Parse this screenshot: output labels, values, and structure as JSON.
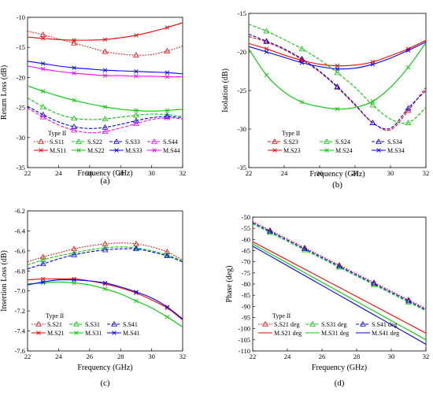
{
  "chart_data": [
    {
      "type": "line",
      "panel_label": "(a)",
      "xlabel": "Frequency (GHz)",
      "ylabel": "Return Loss (dB)",
      "xlim": [
        22,
        32
      ],
      "ylim": [
        -35,
        -10
      ],
      "xticks": [
        22,
        24,
        26,
        28,
        30,
        32
      ],
      "yticks": [
        -35,
        -30,
        -25,
        -20,
        -15,
        -10
      ],
      "grid": false,
      "legend_title": "Type II",
      "legend_placement": "bottom",
      "legend_columns": 4,
      "x": [
        22,
        23,
        24,
        25,
        26,
        27,
        28,
        29,
        30,
        31,
        32
      ],
      "series": [
        {
          "name": "S.S11",
          "color": "#ff0000",
          "dash": "dotted",
          "marker": "triangle",
          "values": [
            -12.3,
            -12.9,
            -13.6,
            -14.3,
            -15.0,
            -15.7,
            -16.1,
            -16.3,
            -16.2,
            -15.6,
            -14.8
          ]
        },
        {
          "name": "S.S22",
          "color": "#00cc00",
          "dash": "dashed",
          "marker": "triangle",
          "values": [
            -23.4,
            -24.9,
            -26.1,
            -26.8,
            -27.0,
            -26.9,
            -26.6,
            -26.3,
            -26.1,
            -26.2,
            -26.5
          ]
        },
        {
          "name": "S.S33",
          "color": "#0000ff",
          "dash": "dashed",
          "marker": "triangle",
          "values": [
            -24.8,
            -26.2,
            -27.4,
            -28.2,
            -28.5,
            -28.3,
            -27.8,
            -27.2,
            -26.7,
            -26.5,
            -26.7
          ]
        },
        {
          "name": "S.S44",
          "color": "#ff00ff",
          "dash": "dashed",
          "marker": "triangle",
          "values": [
            -25.1,
            -26.6,
            -27.9,
            -28.8,
            -29.2,
            -29.0,
            -28.4,
            -27.7,
            -27.0,
            -26.7,
            -26.9
          ]
        },
        {
          "name": "M.S11",
          "color": "#ff0000",
          "dash": "solid",
          "marker": "x",
          "values": [
            -13.3,
            -13.5,
            -13.7,
            -13.8,
            -13.8,
            -13.7,
            -13.4,
            -13.0,
            -12.4,
            -11.7,
            -10.9
          ]
        },
        {
          "name": "M.S22",
          "color": "#00cc00",
          "dash": "solid",
          "marker": "x",
          "values": [
            -21.4,
            -22.3,
            -23.1,
            -23.8,
            -24.4,
            -24.9,
            -25.3,
            -25.5,
            -25.6,
            -25.5,
            -25.3
          ]
        },
        {
          "name": "M.S33",
          "color": "#0000ff",
          "dash": "solid",
          "marker": "x",
          "values": [
            -17.3,
            -17.7,
            -18.1,
            -18.4,
            -18.6,
            -18.8,
            -18.9,
            -19.0,
            -19.1,
            -19.2,
            -19.4
          ]
        },
        {
          "name": "M.S44",
          "color": "#ff00ff",
          "dash": "solid",
          "marker": "x",
          "values": [
            -18.1,
            -18.6,
            -19.0,
            -19.3,
            -19.5,
            -19.7,
            -19.7,
            -19.8,
            -19.8,
            -19.9,
            -19.9
          ]
        }
      ]
    },
    {
      "type": "line",
      "panel_label": "(b)",
      "xlabel": "Frequency (GHz)",
      "ylabel": "Isolation (dB)",
      "xlim": [
        22,
        32
      ],
      "ylim": [
        -35,
        -15
      ],
      "xticks": [
        22,
        24,
        26,
        28,
        30,
        32
      ],
      "yticks": [
        -35,
        -30,
        -25,
        -20,
        -15
      ],
      "grid": false,
      "legend_title": "Type II",
      "legend_placement": "bottom",
      "legend_columns": 3,
      "x": [
        22,
        23,
        24,
        25,
        26,
        27,
        28,
        29,
        30,
        31,
        32
      ],
      "series": [
        {
          "name": "S.S23",
          "color": "#ff0000",
          "dash": "dashed",
          "marker": "triangle",
          "values": [
            -18.0,
            -18.7,
            -19.7,
            -21.0,
            -22.6,
            -24.6,
            -26.9,
            -29.2,
            -30.1,
            -27.6,
            -24.6
          ]
        },
        {
          "name": "S.S24",
          "color": "#00cc00",
          "dash": "dashed",
          "marker": "triangle",
          "values": [
            -16.4,
            -17.3,
            -18.4,
            -19.6,
            -21.0,
            -22.7,
            -24.6,
            -26.9,
            -28.7,
            -29.2,
            -27.2
          ]
        },
        {
          "name": "S.S34",
          "color": "#0000ff",
          "dash": "dashed",
          "marker": "triangle",
          "values": [
            -17.7,
            -18.6,
            -19.6,
            -20.9,
            -22.5,
            -24.5,
            -26.8,
            -29.2,
            -29.9,
            -27.3,
            -25.0
          ]
        },
        {
          "name": "M.S23",
          "color": "#ff0000",
          "dash": "solid",
          "marker": "x",
          "values": [
            -18.9,
            -19.6,
            -20.4,
            -21.1,
            -21.6,
            -21.8,
            -21.7,
            -21.3,
            -20.5,
            -19.6,
            -18.5
          ]
        },
        {
          "name": "M.S24",
          "color": "#00cc00",
          "dash": "solid",
          "marker": "x",
          "values": [
            -19.6,
            -23.0,
            -25.2,
            -26.5,
            -27.1,
            -27.4,
            -27.2,
            -26.4,
            -24.6,
            -22.0,
            -18.8
          ]
        },
        {
          "name": "M.S34",
          "color": "#0000ff",
          "dash": "solid",
          "marker": "x",
          "values": [
            -19.3,
            -20.0,
            -20.7,
            -21.4,
            -21.9,
            -22.2,
            -22.1,
            -21.6,
            -20.8,
            -19.8,
            -18.7
          ]
        }
      ]
    },
    {
      "type": "line",
      "panel_label": "(c)",
      "xlabel": "Frequency (GHz)",
      "ylabel": "Insertion Loss (dB)",
      "xlim": [
        22,
        32
      ],
      "ylim": [
        -7.6,
        -6.2
      ],
      "xticks": [
        22,
        24,
        26,
        28,
        30,
        32
      ],
      "yticks": [
        -7.6,
        -7.4,
        -7.2,
        -7.0,
        -6.8,
        -6.6,
        -6.4,
        -6.2
      ],
      "ytick_labels": [
        "-7.6",
        "-7.4",
        "-7.2",
        "-7.0",
        "-6.8",
        "-6.6",
        "-6.4",
        "-6.2"
      ],
      "grid": false,
      "legend_title": "Type II",
      "legend_placement": "bottom-left",
      "legend_columns": 3,
      "x": [
        22,
        23,
        24,
        25,
        26,
        27,
        28,
        29,
        30,
        31,
        32
      ],
      "series": [
        {
          "name": "S.S21",
          "color": "#ff0000",
          "dash": "dotted",
          "marker": "triangle",
          "values": [
            -6.71,
            -6.66,
            -6.62,
            -6.58,
            -6.55,
            -6.53,
            -6.52,
            -6.53,
            -6.56,
            -6.61,
            -6.69
          ]
        },
        {
          "name": "S.S31",
          "color": "#00cc00",
          "dash": "dashed",
          "marker": "triangle",
          "values": [
            -6.74,
            -6.69,
            -6.65,
            -6.62,
            -6.59,
            -6.57,
            -6.56,
            -6.57,
            -6.6,
            -6.64,
            -6.7
          ]
        },
        {
          "name": "S.S41",
          "color": "#0000ff",
          "dash": "dashed",
          "marker": "triangle",
          "values": [
            -6.78,
            -6.73,
            -6.68,
            -6.64,
            -6.61,
            -6.59,
            -6.58,
            -6.58,
            -6.61,
            -6.65,
            -6.71
          ]
        },
        {
          "name": "M.S21",
          "color": "#ff0000",
          "dash": "solid",
          "marker": "x",
          "values": [
            -6.89,
            -6.88,
            -6.88,
            -6.88,
            -6.9,
            -6.93,
            -6.97,
            -7.02,
            -7.09,
            -7.17,
            -7.29
          ]
        },
        {
          "name": "M.S31",
          "color": "#00cc00",
          "dash": "solid",
          "marker": "x",
          "values": [
            -6.93,
            -6.92,
            -6.91,
            -6.92,
            -6.94,
            -6.98,
            -7.03,
            -7.1,
            -7.17,
            -7.26,
            -7.36
          ]
        },
        {
          "name": "M.S41",
          "color": "#0000ff",
          "dash": "solid",
          "marker": "x",
          "values": [
            -6.94,
            -6.91,
            -6.89,
            -6.89,
            -6.9,
            -6.92,
            -6.96,
            -7.01,
            -7.07,
            -7.16,
            -7.28
          ]
        }
      ]
    },
    {
      "type": "line",
      "panel_label": "(d)",
      "xlabel": "Frequency (GHz)",
      "ylabel": "Phase (deg)",
      "xlim": [
        22,
        32
      ],
      "ylim": [
        -110,
        -50
      ],
      "xticks": [
        22,
        24,
        26,
        28,
        30,
        32
      ],
      "yticks": [
        -110,
        -105,
        -100,
        -95,
        -90,
        -85,
        -80,
        -75,
        -70,
        -65,
        -60,
        -55,
        -50
      ],
      "grid": false,
      "legend_title": "Type II",
      "legend_placement": "bottom-left",
      "legend_columns": 3,
      "x": [
        22,
        23,
        24,
        25,
        26,
        27,
        28,
        29,
        30,
        31,
        32
      ],
      "series": [
        {
          "name": "S.S21 deg",
          "color": "#ff0000",
          "dash": "dotted",
          "marker": "triangle",
          "values": [
            -52.0,
            -55.9,
            -59.8,
            -63.7,
            -67.6,
            -71.5,
            -75.4,
            -79.3,
            -83.2,
            -87.1,
            -91.0
          ]
        },
        {
          "name": "S.S31 deg",
          "color": "#00cc00",
          "dash": "dashed",
          "marker": "triangle",
          "values": [
            -53.0,
            -56.9,
            -60.8,
            -64.7,
            -68.6,
            -72.5,
            -76.4,
            -80.3,
            -84.2,
            -88.1,
            -92.0
          ]
        },
        {
          "name": "S.S41 deg",
          "color": "#0000ff",
          "dash": "dashed",
          "marker": "triangle",
          "values": [
            -52.5,
            -56.4,
            -60.3,
            -64.2,
            -68.1,
            -72.0,
            -75.9,
            -79.8,
            -83.7,
            -87.6,
            -91.5
          ]
        },
        {
          "name": "M.S21 deg",
          "color": "#ff0000",
          "dash": "solid",
          "marker": "none",
          "values": [
            -61.0,
            -65.1,
            -69.2,
            -73.3,
            -77.4,
            -81.5,
            -85.6,
            -89.7,
            -93.8,
            -97.9,
            -102.0
          ]
        },
        {
          "name": "M.S31 deg",
          "color": "#00cc00",
          "dash": "solid",
          "marker": "none",
          "values": [
            -62.0,
            -66.3,
            -70.6,
            -74.9,
            -79.2,
            -83.5,
            -87.8,
            -92.1,
            -96.4,
            -100.7,
            -105.0
          ]
        },
        {
          "name": "M.S41 deg",
          "color": "#0000ff",
          "dash": "solid",
          "marker": "none",
          "values": [
            -63.0,
            -67.4,
            -71.8,
            -76.2,
            -80.6,
            -85.0,
            -89.4,
            -93.8,
            -98.2,
            -102.6,
            -107.0
          ]
        }
      ]
    }
  ]
}
